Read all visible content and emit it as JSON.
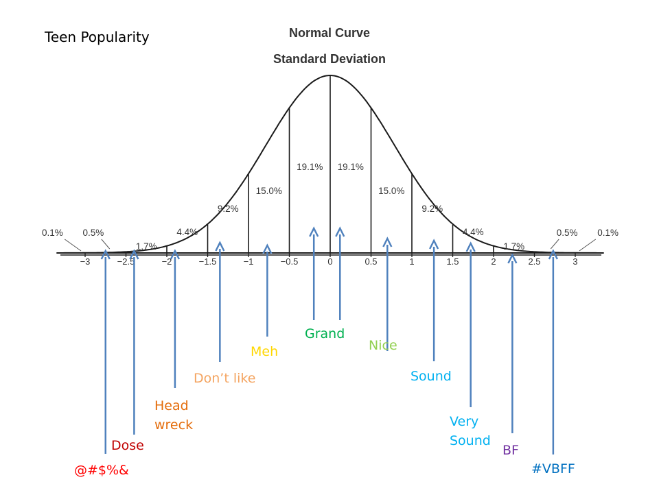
{
  "side_title": "Teen Popularity",
  "chart": {
    "title": "Normal Curve",
    "subtitle": "Standard Deviation",
    "x_ticks": [
      "−3",
      "−2.5",
      "−2",
      "−1.5",
      "−1",
      "−0.5",
      "0",
      "0.5",
      "1",
      "1.5",
      "2",
      "2.5",
      "3"
    ],
    "x_tick_values": [
      -3,
      -2.5,
      -2,
      -1.5,
      -1,
      -0.5,
      0,
      0.5,
      1,
      1.5,
      2,
      2.5,
      3
    ],
    "segment_labels": [
      {
        "text": "0.1%",
        "x": -3.4,
        "outside": true
      },
      {
        "text": "0.5%",
        "x": -2.9,
        "outside": false
      },
      {
        "text": "1.7%",
        "x": -2.25,
        "outside": false
      },
      {
        "text": "4.4%",
        "x": -1.75,
        "outside": false
      },
      {
        "text": "9.2%",
        "x": -1.25,
        "outside": false
      },
      {
        "text": "15.0%",
        "x": -0.75,
        "outside": false
      },
      {
        "text": "19.1%",
        "x": -0.25,
        "outside": false
      },
      {
        "text": "19.1%",
        "x": 0.25,
        "outside": false
      },
      {
        "text": "15.0%",
        "x": 0.75,
        "outside": false
      },
      {
        "text": "9.2%",
        "x": 1.25,
        "outside": false
      },
      {
        "text": "4.4%",
        "x": 1.75,
        "outside": false
      },
      {
        "text": "1.7%",
        "x": 2.25,
        "outside": false
      },
      {
        "text": "0.5%",
        "x": 2.9,
        "outside": false
      },
      {
        "text": "0.1%",
        "x": 3.4,
        "outside": true
      }
    ]
  },
  "annotations": [
    {
      "text": "@#$%&",
      "color": "#ff0000",
      "x": -2.75
    },
    {
      "text": "Dose",
      "color": "#c00000",
      "x": -2.4
    },
    {
      "text": "Head\nwreck",
      "color": "#e46c0a",
      "x": -1.9
    },
    {
      "text": "Don’t like",
      "color": "#f4a460",
      "x": -1.35
    },
    {
      "text": "Meh",
      "color": "#ffd700",
      "x": -0.77
    },
    {
      "text": "Grand",
      "color": "#00b050",
      "x": -0.2
    },
    {
      "text": "",
      "color": "#00b050",
      "x": 0.12
    },
    {
      "text": "Nice",
      "color": "#92d050",
      "x": 0.7
    },
    {
      "text": "Sound",
      "color": "#00b0f0",
      "x": 1.27
    },
    {
      "text": "Very\nSound",
      "color": "#00b0f0",
      "x": 1.72
    },
    {
      "text": "BF",
      "color": "#7030a0",
      "x": 2.23
    },
    {
      "text": "#VBFF",
      "color": "#0070c0",
      "x": 2.73
    }
  ],
  "arrow_color": "#4f81bd"
}
